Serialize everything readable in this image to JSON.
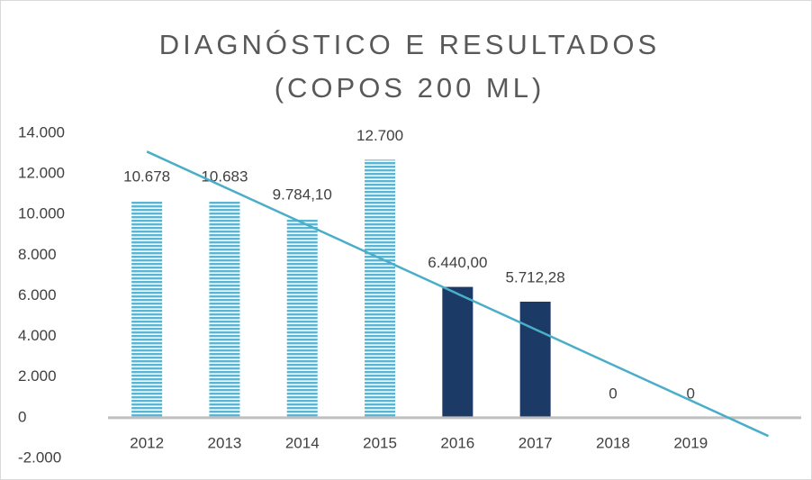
{
  "chart_data": {
    "type": "bar",
    "title": "DIAGNÓSTICO E RESULTADOS",
    "subtitle": "(COPOS 200 ML)",
    "categories": [
      "2012",
      "2013",
      "2014",
      "2015",
      "2016",
      "2017",
      "2018",
      "2019"
    ],
    "values": [
      10678,
      10683,
      9784.1,
      12700,
      6440,
      5712.28,
      0,
      0
    ],
    "value_labels": [
      "10.678",
      "10.683",
      "9.784,10",
      "12.700",
      "6.440,00",
      "5.712,28",
      "0",
      "0"
    ],
    "colors": [
      "#5ab4d2",
      "#5ab4d2",
      "#5ab4d2",
      "#5ab4d2",
      "#1b3a66",
      "#1b3a66",
      "#1b3a66",
      "#1b3a66"
    ],
    "patterns": [
      "striped",
      "striped",
      "striped",
      "striped",
      "solid",
      "solid",
      "solid",
      "solid"
    ],
    "ylim": [
      -2000,
      14000
    ],
    "yticks": [
      {
        "value": -2000,
        "label": "-2.000"
      },
      0,
      {
        "value": 2000,
        "label": "2.000"
      },
      {
        "value": 4000,
        "label": "4.000"
      },
      {
        "value": 6000,
        "label": "6.000"
      },
      {
        "value": 8000,
        "label": "8.000"
      },
      {
        "value": 10000,
        "label": "10.000"
      },
      {
        "value": 12000,
        "label": "12.000"
      },
      {
        "value": 14000,
        "label": "14.000"
      }
    ],
    "grid": false,
    "trendline": {
      "color": "#4aaec8",
      "x": [
        0,
        8
      ],
      "values": [
        13100,
        -900
      ]
    }
  }
}
